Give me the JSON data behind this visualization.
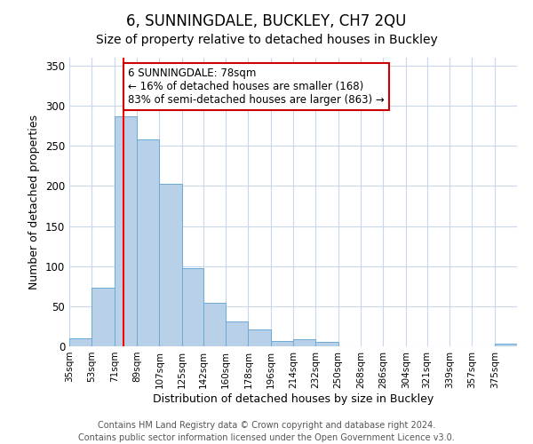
{
  "title": "6, SUNNINGDALE, BUCKLEY, CH7 2QU",
  "subtitle": "Size of property relative to detached houses in Buckley",
  "xlabel": "Distribution of detached houses by size in Buckley",
  "ylabel": "Number of detached properties",
  "bar_edges": [
    35,
    53,
    71,
    89,
    107,
    125,
    142,
    160,
    178,
    196,
    214,
    232,
    250,
    268,
    286,
    304,
    321,
    339,
    357,
    375,
    393
  ],
  "bar_heights": [
    10,
    73,
    287,
    258,
    203,
    97,
    54,
    31,
    21,
    7,
    9,
    5,
    0,
    0,
    0,
    0,
    0,
    0,
    0,
    3
  ],
  "bar_color": "#b8d0e8",
  "bar_edge_color": "#6aaad4",
  "red_line_x": 78,
  "annotation_title": "6 SUNNINGDALE: 78sqm",
  "annotation_line1": "← 16% of detached houses are smaller (168)",
  "annotation_line2": "83% of semi-detached houses are larger (863) →",
  "annotation_box_color": "#ffffff",
  "annotation_box_edge_color": "#cc0000",
  "ylim": [
    0,
    360
  ],
  "yticks": [
    0,
    50,
    100,
    150,
    200,
    250,
    300,
    350
  ],
  "footer_line1": "Contains HM Land Registry data © Crown copyright and database right 2024.",
  "footer_line2": "Contains public sector information licensed under the Open Government Licence v3.0.",
  "bg_color": "#ffffff",
  "grid_color": "#c8d8ea",
  "title_fontsize": 12,
  "subtitle_fontsize": 10,
  "tick_label_fontsize": 7.5,
  "axis_label_fontsize": 9,
  "annotation_fontsize": 8.5,
  "footer_fontsize": 7
}
